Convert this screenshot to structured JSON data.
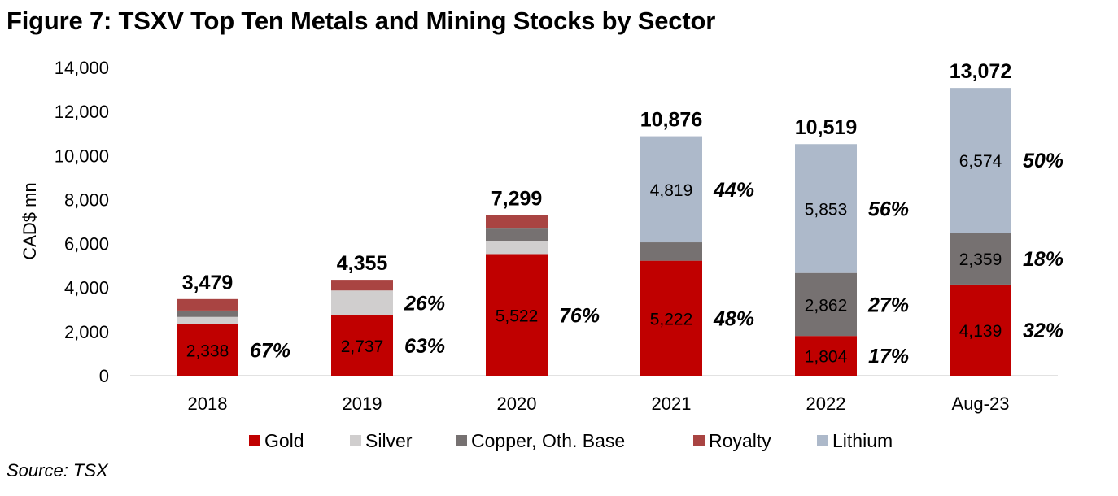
{
  "title": "Figure 7: TSXV Top Ten Metals and Mining Stocks by Sector",
  "source": "Source: TSX",
  "chart_data": {
    "type": "bar",
    "stacked": true,
    "title": "Figure 7: TSXV Top Ten Metals and Mining Stocks by Sector",
    "xlabel": "",
    "ylabel": "CAD$ mn",
    "ylim": [
      0,
      14000
    ],
    "yticks": [
      0,
      2000,
      4000,
      6000,
      8000,
      10000,
      12000,
      14000
    ],
    "ytick_labels": [
      "0",
      "2,000",
      "4,000",
      "6,000",
      "8,000",
      "10,000",
      "12,000",
      "14,000"
    ],
    "grid": false,
    "legend_position": "bottom",
    "categories": [
      "2018",
      "2019",
      "2020",
      "2021",
      "2022",
      "Aug-23"
    ],
    "series": [
      {
        "name": "Gold",
        "color": "#c00000",
        "values": [
          2338,
          2737,
          5522,
          5222,
          1804,
          4139
        ]
      },
      {
        "name": "Silver",
        "color": "#d0cece",
        "values": [
          330,
          1133,
          610,
          0,
          0,
          0
        ]
      },
      {
        "name": "Copper, Oth. Base",
        "color": "#767171",
        "values": [
          290,
          0,
          550,
          835,
          2862,
          2359
        ]
      },
      {
        "name": "Royalty",
        "color": "#a94442",
        "values": [
          521,
          485,
          617,
          0,
          0,
          0
        ]
      },
      {
        "name": "Lithium",
        "color": "#adb9ca",
        "values": [
          0,
          0,
          0,
          4819,
          5853,
          6574
        ]
      }
    ],
    "totals": [
      "3,479",
      "4,355",
      "7,299",
      "10,876",
      "10,519",
      "13,072"
    ],
    "segment_labels": [
      [
        {
          "series": 0,
          "text": "2,338"
        }
      ],
      [
        {
          "series": 0,
          "text": "2,737"
        }
      ],
      [
        {
          "series": 0,
          "text": "5,522"
        }
      ],
      [
        {
          "series": 0,
          "text": "5,222"
        },
        {
          "series": 4,
          "text": "4,819"
        }
      ],
      [
        {
          "series": 0,
          "text": "1,804"
        },
        {
          "series": 2,
          "text": "2,862"
        },
        {
          "series": 4,
          "text": "5,853"
        }
      ],
      [
        {
          "series": 0,
          "text": "4,139"
        },
        {
          "series": 2,
          "text": "2,359"
        },
        {
          "series": 4,
          "text": "6,574"
        }
      ]
    ],
    "percent_annotations": [
      [
        {
          "series": 0,
          "text": "67%"
        }
      ],
      [
        {
          "series": 0,
          "text": "63%"
        },
        {
          "series": 1,
          "text": "26%"
        }
      ],
      [
        {
          "series": 0,
          "text": "76%"
        }
      ],
      [
        {
          "series": 0,
          "text": "48%"
        },
        {
          "series": 4,
          "text": "44%"
        }
      ],
      [
        {
          "series": 0,
          "text": "17%"
        },
        {
          "series": 2,
          "text": "27%"
        },
        {
          "series": 4,
          "text": "56%"
        }
      ],
      [
        {
          "series": 0,
          "text": "32%"
        },
        {
          "series": 2,
          "text": "18%"
        },
        {
          "series": 4,
          "text": "50%"
        }
      ]
    ]
  }
}
